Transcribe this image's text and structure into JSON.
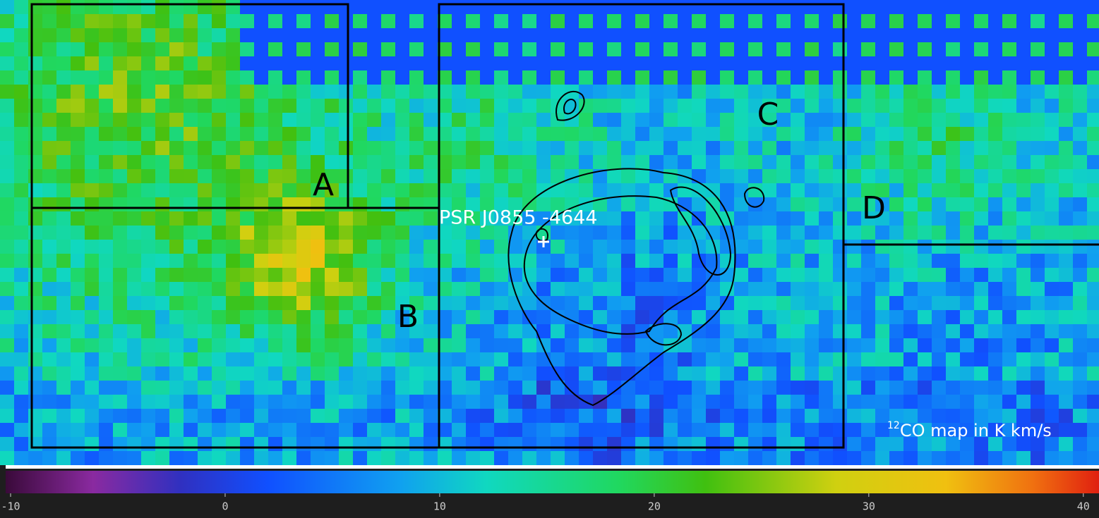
{
  "map": {
    "regions": [
      "A",
      "B",
      "C",
      "D"
    ],
    "source": "PSR J0855 -4644",
    "caption": {
      "isotope": "12",
      "text": "CO map in K km/s"
    }
  },
  "colorbar": {
    "lim": [
      -10.23,
      40.73
    ],
    "ticks": [
      -10,
      0,
      10,
      20,
      30,
      40
    ]
  }
}
